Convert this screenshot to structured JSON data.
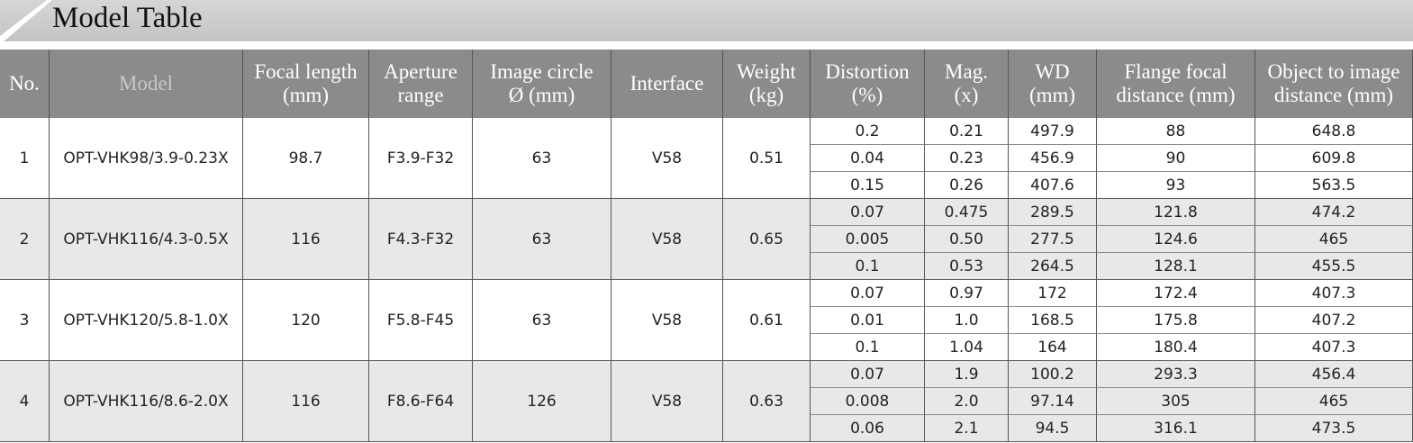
{
  "header": {
    "title": "Model Table"
  },
  "table": {
    "columns": [
      [
        "No."
      ],
      [
        "Model"
      ],
      [
        "Focal length",
        "(mm)"
      ],
      [
        "Aperture",
        "range"
      ],
      [
        "Image circle",
        "Ø (mm)"
      ],
      [
        "Interface"
      ],
      [
        "Weight",
        "(kg)"
      ],
      [
        "Distortion",
        "(%)"
      ],
      [
        "Mag.",
        "(x)"
      ],
      [
        "WD",
        "(mm)"
      ],
      [
        "Flange focal",
        "distance (mm)"
      ],
      [
        "Object to image",
        "distance (mm)"
      ]
    ],
    "groups": [
      {
        "cells": [
          "1",
          "OPT-VHK98/3.9-0.23X",
          "98.7",
          "F3.9-F32",
          "63",
          "V58",
          "0.51"
        ],
        "rows": [
          [
            "0.2",
            "0.21",
            "497.9",
            "88",
            "648.8"
          ],
          [
            "0.04",
            "0.23",
            "456.9",
            "90",
            "609.8"
          ],
          [
            "0.15",
            "0.26",
            "407.6",
            "93",
            "563.5"
          ]
        ]
      },
      {
        "cells": [
          "2",
          "OPT-VHK116/4.3-0.5X",
          "116",
          "F4.3-F32",
          "63",
          "V58",
          "0.65"
        ],
        "rows": [
          [
            "0.07",
            "0.475",
            "289.5",
            "121.8",
            "474.2"
          ],
          [
            "0.005",
            "0.50",
            "277.5",
            "124.6",
            "465"
          ],
          [
            "0.1",
            "0.53",
            "264.5",
            "128.1",
            "455.5"
          ]
        ]
      },
      {
        "cells": [
          "3",
          "OPT-VHK120/5.8-1.0X",
          "120",
          "F5.8-F45",
          "63",
          "V58",
          "0.61"
        ],
        "rows": [
          [
            "0.07",
            "0.97",
            "172",
            "172.4",
            "407.3"
          ],
          [
            "0.01",
            "1.0",
            "168.5",
            "175.8",
            "407.2"
          ],
          [
            "0.1",
            "1.04",
            "164",
            "180.4",
            "407.3"
          ]
        ]
      },
      {
        "cells": [
          "4",
          "OPT-VHK116/8.6-2.0X",
          "116",
          "F8.6-F64",
          "126",
          "V58",
          "0.63"
        ],
        "rows": [
          [
            "0.07",
            "1.9",
            "100.2",
            "293.3",
            "456.4"
          ],
          [
            "0.008",
            "2.0",
            "97.14",
            "305",
            "465"
          ],
          [
            "0.06",
            "2.1",
            "94.5",
            "316.1",
            "473.5"
          ]
        ]
      }
    ]
  }
}
